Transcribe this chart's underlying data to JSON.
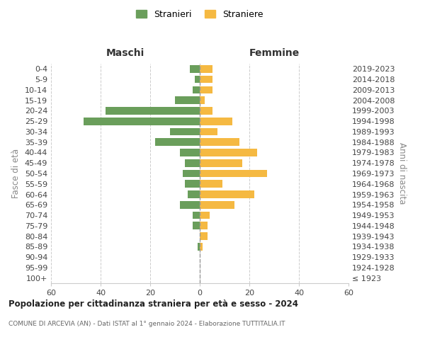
{
  "age_groups": [
    "100+",
    "95-99",
    "90-94",
    "85-89",
    "80-84",
    "75-79",
    "70-74",
    "65-69",
    "60-64",
    "55-59",
    "50-54",
    "45-49",
    "40-44",
    "35-39",
    "30-34",
    "25-29",
    "20-24",
    "15-19",
    "10-14",
    "5-9",
    "0-4"
  ],
  "birth_years": [
    "≤ 1923",
    "1924-1928",
    "1929-1933",
    "1934-1938",
    "1939-1943",
    "1944-1948",
    "1949-1953",
    "1954-1958",
    "1959-1963",
    "1964-1968",
    "1969-1973",
    "1974-1978",
    "1979-1983",
    "1984-1988",
    "1989-1993",
    "1994-1998",
    "1999-2003",
    "2004-2008",
    "2009-2013",
    "2014-2018",
    "2019-2023"
  ],
  "males": [
    0,
    0,
    0,
    1,
    0,
    3,
    3,
    8,
    5,
    6,
    7,
    6,
    8,
    18,
    12,
    47,
    38,
    10,
    3,
    2,
    4
  ],
  "females": [
    0,
    0,
    0,
    1,
    3,
    3,
    4,
    14,
    22,
    9,
    27,
    17,
    23,
    16,
    7,
    13,
    5,
    2,
    5,
    5,
    5
  ],
  "male_color": "#6a9e5b",
  "female_color": "#f5b942",
  "male_label": "Stranieri",
  "female_label": "Straniere",
  "title": "Popolazione per cittadinanza straniera per età e sesso - 2024",
  "subtitle": "COMUNE DI ARCEVIA (AN) - Dati ISTAT al 1° gennaio 2024 - Elaborazione TUTTITALIA.IT",
  "label_maschi": "Maschi",
  "label_femmine": "Femmine",
  "ylabel_left": "Fasce di età",
  "ylabel_right": "Anni di nascita",
  "xlim": 60,
  "background_color": "#ffffff",
  "grid_color": "#cccccc"
}
